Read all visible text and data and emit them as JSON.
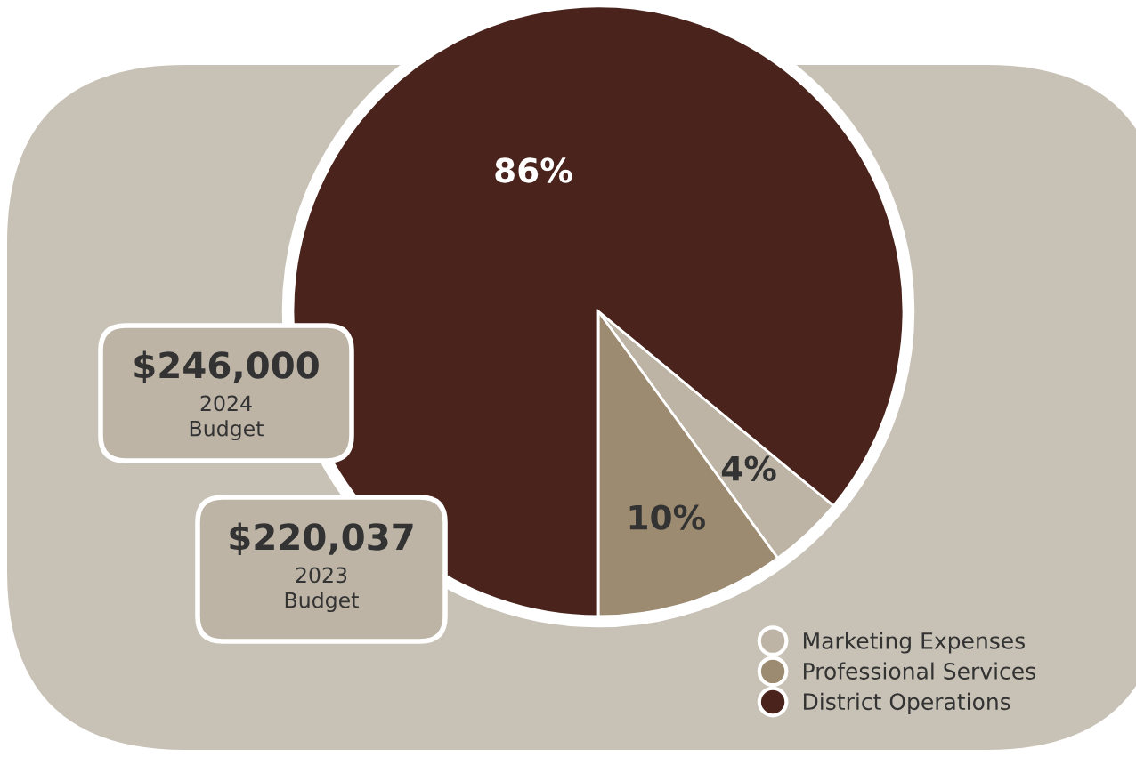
{
  "chart_data": {
    "type": "pie",
    "categories": [
      "Marketing Expenses",
      "Professional Services",
      "District Operations"
    ],
    "values": [
      4,
      10,
      86
    ],
    "colors": [
      "#bdb4a6",
      "#9c8b70",
      "#4a241c"
    ],
    "value_labels": [
      "4%",
      "10%",
      "86%"
    ],
    "legend": "bottom right",
    "annotations": [
      "$246,000",
      "2024\nBudget",
      "$220,037",
      "2023\nBudget"
    ]
  }
}
